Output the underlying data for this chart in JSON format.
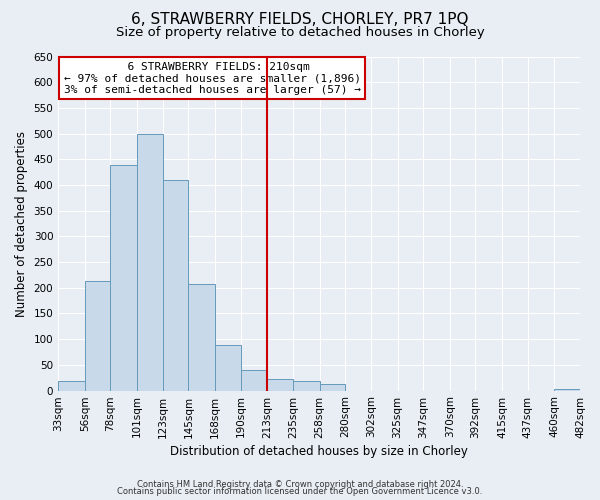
{
  "title": "6, STRAWBERRY FIELDS, CHORLEY, PR7 1PQ",
  "subtitle": "Size of property relative to detached houses in Chorley",
  "xlabel": "Distribution of detached houses by size in Chorley",
  "ylabel": "Number of detached properties",
  "bin_edges": [
    33,
    56,
    78,
    101,
    123,
    145,
    168,
    190,
    213,
    235,
    258,
    280,
    302,
    325,
    347,
    370,
    392,
    415,
    437,
    460,
    482
  ],
  "bar_heights": [
    18,
    213,
    438,
    500,
    410,
    207,
    88,
    40,
    23,
    18,
    12,
    0,
    0,
    0,
    0,
    0,
    0,
    0,
    0,
    3
  ],
  "bar_color": "#c8d9ea",
  "bar_edge_color": "#6699bb",
  "vline_x": 213,
  "vline_color": "#cc0000",
  "ylim": [
    0,
    650
  ],
  "yticks": [
    0,
    50,
    100,
    150,
    200,
    250,
    300,
    350,
    400,
    450,
    500,
    550,
    600,
    650
  ],
  "annotation_title": "6 STRAWBERRY FIELDS: 210sqm",
  "annotation_line1": "← 97% of detached houses are smaller (1,896)",
  "annotation_line2": "3% of semi-detached houses are larger (57) →",
  "annotation_box_color": "#ffffff",
  "annotation_box_edge": "#cc0000",
  "footer1": "Contains HM Land Registry data © Crown copyright and database right 2024.",
  "footer2": "Contains public sector information licensed under the Open Government Licence v3.0.",
  "bg_color": "#e8eef4",
  "grid_color": "#ffffff",
  "title_fontsize": 11,
  "subtitle_fontsize": 9.5,
  "tick_label_fontsize": 7.5,
  "axis_label_fontsize": 8.5
}
